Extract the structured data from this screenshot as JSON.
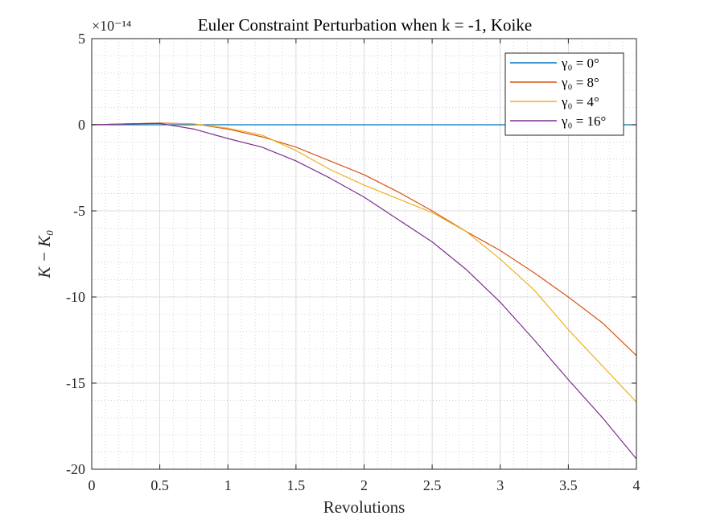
{
  "chart_data": {
    "type": "line",
    "title": "Euler Constraint Perturbation when k = -1, Koike",
    "xlabel": "Revolutions",
    "ylabel": "K − K₀",
    "exponent_label": "×10⁻¹⁴",
    "xlim": [
      0,
      4
    ],
    "ylim": [
      -20,
      5
    ],
    "x_ticks": [
      0,
      0.5,
      1,
      1.5,
      2,
      2.5,
      3,
      3.5,
      4
    ],
    "x_tick_labels": [
      "0",
      "0.5",
      "1",
      "1.5",
      "2",
      "2.5",
      "3",
      "3.5",
      "4"
    ],
    "y_ticks": [
      5,
      0,
      -5,
      -10,
      -15,
      -20
    ],
    "y_tick_labels": [
      "5",
      "0",
      "-5",
      "-10",
      "-15",
      "-20"
    ],
    "grid": true,
    "minor_grid": true,
    "legend_position": "top-right",
    "series": [
      {
        "name": "γ₀ = 0°",
        "color": "#0072BD",
        "x": [
          0,
          0.5,
          1,
          1.5,
          2,
          2.5,
          3,
          3.5,
          4
        ],
        "y": [
          0,
          0,
          0,
          0,
          0,
          0,
          0,
          0,
          0
        ]
      },
      {
        "name": "γ₀ = 8°",
        "color": "#D95319",
        "x": [
          0,
          0.25,
          0.5,
          0.75,
          1,
          1.25,
          1.5,
          1.75,
          2,
          2.25,
          2.5,
          2.75,
          3,
          3.25,
          3.5,
          3.75,
          4
        ],
        "y": [
          0,
          0.05,
          0.1,
          0.05,
          -0.25,
          -0.7,
          -1.3,
          -2.1,
          -2.9,
          -3.9,
          -5.0,
          -6.2,
          -7.3,
          -8.6,
          -10.0,
          -11.5,
          -13.4
        ]
      },
      {
        "name": "γ₀ = 4°",
        "color": "#EDB120",
        "x": [
          0,
          0.25,
          0.5,
          0.75,
          1,
          1.25,
          1.5,
          1.75,
          2,
          2.25,
          2.5,
          2.75,
          3,
          3.25,
          3.5,
          3.75,
          4
        ],
        "y": [
          0,
          0.05,
          0.08,
          0.05,
          -0.2,
          -0.6,
          -1.5,
          -2.6,
          -3.5,
          -4.3,
          -5.1,
          -6.2,
          -7.8,
          -9.6,
          -11.9,
          -14.0,
          -16.1
        ]
      },
      {
        "name": "γ₀ = 16°",
        "color": "#7E2F8E",
        "x": [
          0,
          0.25,
          0.5,
          0.75,
          1,
          1.25,
          1.5,
          1.75,
          2,
          2.25,
          2.5,
          2.75,
          3,
          3.25,
          3.5,
          3.75,
          4
        ],
        "y": [
          0,
          0.05,
          0.08,
          -0.25,
          -0.8,
          -1.3,
          -2.1,
          -3.1,
          -4.2,
          -5.5,
          -6.8,
          -8.4,
          -10.3,
          -12.5,
          -14.8,
          -17.0,
          -19.4
        ]
      }
    ]
  }
}
